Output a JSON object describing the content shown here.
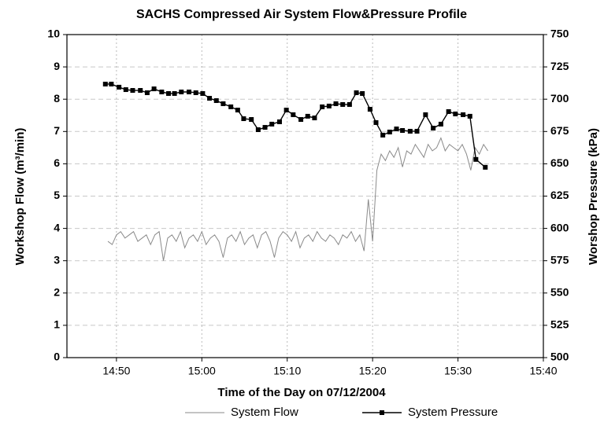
{
  "chart_data": {
    "type": "line",
    "title": "SACHS Compressed Air System Flow&Pressure Profile",
    "x_label": "Time of the Day on 07/12/2004",
    "y_label": "Workshop Flow (m³/min)",
    "y2_label": "Worshop Pressure (kPa)",
    "xlim": [
      884.2,
      940
    ],
    "xticks": [
      {
        "value": 890,
        "label": "14:50"
      },
      {
        "value": 900,
        "label": "15:00"
      },
      {
        "value": 910,
        "label": "15:10"
      },
      {
        "value": 920,
        "label": "15:20"
      },
      {
        "value": 930,
        "label": "15:30"
      },
      {
        "value": 940,
        "label": "15:40"
      }
    ],
    "ylim": [
      0,
      10
    ],
    "yticks": [
      0,
      1,
      2,
      3,
      4,
      5,
      6,
      7,
      8,
      9,
      10
    ],
    "y2lim": [
      500,
      750
    ],
    "y2ticks": [
      500,
      525,
      550,
      575,
      600,
      625,
      650,
      675,
      700,
      725,
      750
    ],
    "grid": true,
    "legend": "bottom",
    "series": [
      {
        "name": "System Flow",
        "color": "#8a8a8a",
        "axis": "y",
        "marker": "none",
        "x": [
          889.0,
          889.5,
          890.0,
          890.5,
          891.0,
          891.5,
          892.0,
          892.5,
          893.0,
          893.5,
          894.0,
          894.5,
          895.0,
          895.5,
          896.0,
          896.5,
          897.0,
          897.5,
          898.0,
          898.5,
          899.0,
          899.5,
          900.0,
          900.5,
          901.0,
          901.5,
          902.0,
          902.5,
          903.0,
          903.5,
          904.0,
          904.5,
          905.0,
          905.5,
          906.0,
          906.5,
          907.0,
          907.5,
          908.0,
          908.5,
          909.0,
          909.5,
          910.0,
          910.5,
          911.0,
          911.5,
          912.0,
          912.5,
          913.0,
          913.5,
          914.0,
          914.5,
          915.0,
          915.5,
          916.0,
          916.5,
          917.0,
          917.5,
          918.0,
          918.5,
          919.0,
          919.5,
          920.0,
          920.5,
          921.0,
          921.5,
          922.0,
          922.5,
          923.0,
          923.5,
          924.0,
          924.5,
          925.0,
          925.5,
          926.0,
          926.5,
          927.0,
          927.5,
          928.0,
          928.5,
          929.0,
          929.5,
          930.0,
          930.5,
          931.0,
          931.5,
          932.0,
          932.5,
          933.0,
          933.5
        ],
        "values": [
          3.6,
          3.5,
          3.8,
          3.9,
          3.7,
          3.8,
          3.9,
          3.6,
          3.7,
          3.8,
          3.5,
          3.8,
          3.9,
          3.0,
          3.7,
          3.8,
          3.6,
          3.9,
          3.4,
          3.7,
          3.8,
          3.6,
          3.9,
          3.5,
          3.7,
          3.8,
          3.6,
          3.1,
          3.7,
          3.8,
          3.6,
          3.9,
          3.5,
          3.7,
          3.8,
          3.4,
          3.8,
          3.9,
          3.6,
          3.1,
          3.7,
          3.9,
          3.8,
          3.6,
          3.9,
          3.4,
          3.7,
          3.8,
          3.6,
          3.9,
          3.7,
          3.6,
          3.8,
          3.7,
          3.5,
          3.8,
          3.7,
          3.9,
          3.6,
          3.8,
          3.3,
          4.9,
          3.6,
          5.8,
          6.3,
          6.1,
          6.4,
          6.2,
          6.5,
          5.9,
          6.4,
          6.3,
          6.6,
          6.4,
          6.2,
          6.6,
          6.4,
          6.5,
          6.8,
          6.4,
          6.6,
          6.5,
          6.4,
          6.6,
          6.3,
          5.8,
          6.5,
          6.3,
          6.6,
          6.4
        ]
      },
      {
        "name": "System Pressure",
        "color": "#000000",
        "axis": "y2",
        "marker": "square",
        "x": [
          888.7,
          889.4,
          890.3,
          891.1,
          891.9,
          892.8,
          893.6,
          894.4,
          895.3,
          896.1,
          896.8,
          897.6,
          898.5,
          899.3,
          900.1,
          900.9,
          901.7,
          902.5,
          903.4,
          904.2,
          904.9,
          905.8,
          906.6,
          907.4,
          908.2,
          909.1,
          909.9,
          910.7,
          911.6,
          912.4,
          913.2,
          914.1,
          914.9,
          915.7,
          916.5,
          917.3,
          918.1,
          918.8,
          919.7,
          920.4,
          921.2,
          922.0,
          922.8,
          923.5,
          924.4,
          925.2,
          926.2,
          927.1,
          928.0,
          928.9,
          929.7,
          930.6,
          931.4,
          932.1,
          933.2
        ],
        "values": [
          711.7,
          711.7,
          709.3,
          707.4,
          706.8,
          706.8,
          705.0,
          708.0,
          705.6,
          704.4,
          704.4,
          705.6,
          705.6,
          705.0,
          704.4,
          700.7,
          698.9,
          696.5,
          694.1,
          691.6,
          684.9,
          684.3,
          676.4,
          678.2,
          680.7,
          682.5,
          691.6,
          688.0,
          684.3,
          686.8,
          685.5,
          694.1,
          694.7,
          696.5,
          695.9,
          695.9,
          705.0,
          704.4,
          692.2,
          681.9,
          672.2,
          674.6,
          677.0,
          675.8,
          675.2,
          675.2,
          688.0,
          677.6,
          680.7,
          690.4,
          688.6,
          688.0,
          686.8,
          653.4,
          647.3
        ]
      }
    ]
  }
}
